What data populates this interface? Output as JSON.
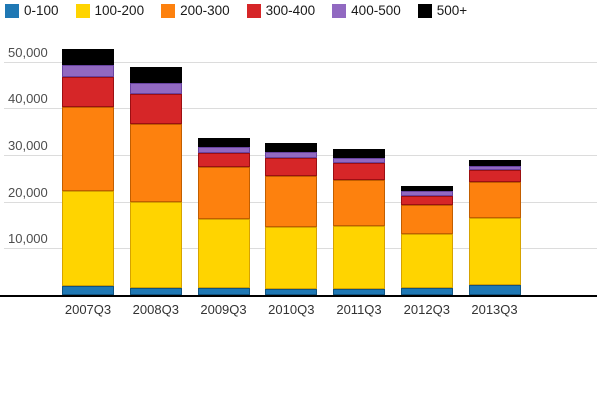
{
  "chart_data": {
    "type": "bar",
    "stacked": true,
    "title": "",
    "xlabel": "",
    "ylabel": "",
    "categories": [
      "2007Q3",
      "2008Q3",
      "2009Q3",
      "2010Q3",
      "2011Q3",
      "2012Q3",
      "2013Q3"
    ],
    "series": [
      {
        "name": "0-100",
        "color": "#1f78b4",
        "stroke": "#10537f",
        "values": [
          2000,
          1500,
          1500,
          1300,
          1400,
          1500,
          2100
        ]
      },
      {
        "name": "100-200",
        "color": "#ffd400",
        "stroke": "#d6a300",
        "values": [
          20400,
          18400,
          14800,
          13200,
          13300,
          11600,
          14500
        ]
      },
      {
        "name": "200-300",
        "color": "#fd810e",
        "stroke": "#c25e00",
        "values": [
          17900,
          16800,
          11100,
          11100,
          9900,
          6300,
          7700
        ]
      },
      {
        "name": "300-400",
        "color": "#d62628",
        "stroke": "#9c0f12",
        "values": [
          6400,
          6300,
          3100,
          3700,
          3600,
          1900,
          2500
        ]
      },
      {
        "name": "400-500",
        "color": "#9169c1",
        "stroke": "#6843a1",
        "values": [
          2600,
          2400,
          1200,
          1300,
          1100,
          1000,
          900
        ]
      },
      {
        "name": "500+",
        "color": "#000000",
        "stroke": "#000000",
        "values": [
          3400,
          3400,
          2000,
          2000,
          1900,
          1100,
          1200
        ]
      }
    ],
    "totals": [
      52700,
      48800,
      33700,
      32600,
      31200,
      23400,
      28900
    ],
    "ylim": [
      0,
      50000
    ],
    "y_tick_values": [
      10000,
      20000,
      30000,
      40000,
      50000
    ],
    "y_tick_labels": [
      "10,000",
      "20,000",
      "30,000",
      "40,000",
      "50,000"
    ],
    "grid": "horizontal",
    "legend_position": "top-left",
    "colors": {
      "grid_color": "#dcdcdc",
      "axis_color": "#000000",
      "y_label_color": "#4d4d4d",
      "x_label_color": "#333333",
      "background": "#ffffff"
    }
  }
}
